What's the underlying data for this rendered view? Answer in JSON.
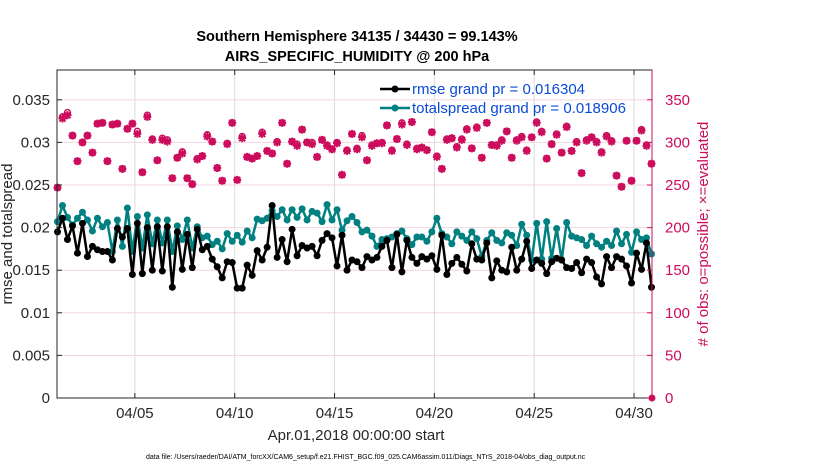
{
  "chart_data": {
    "type": "line",
    "title": "Southern Hemisphere 34135 / 34430 = 99.143%",
    "subtitle": "AIRS_SPECIFIC_HUMIDITY @ 200 hPa",
    "xlabel": "Apr.01,2018 00:00:00 start",
    "ylabel": "rmse and totalspread",
    "y2label": "# of obs: o=possible; ×=evaluated",
    "footnote": "data file: /Users/raeder/DAI/ATM_forcXX/CAM6_setup/f.e21.FHIST_BGC.f09_025.CAM6assim.011/Diags_NTrS_2018-04/obs_diag_output.nc",
    "xlim_days": [
      1.1,
      30.9
    ],
    "ylim": [
      0,
      0.0385
    ],
    "y2lim": [
      0,
      385
    ],
    "x_ticks": [
      {
        "day": 5,
        "label": "04/05"
      },
      {
        "day": 10,
        "label": "04/10"
      },
      {
        "day": 15,
        "label": "04/15"
      },
      {
        "day": 20,
        "label": "04/20"
      },
      {
        "day": 25,
        "label": "04/25"
      },
      {
        "day": 30,
        "label": "04/30"
      }
    ],
    "y_ticks": [
      {
        "v": 0,
        "label": "0"
      },
      {
        "v": 0.005,
        "label": "0.005"
      },
      {
        "v": 0.01,
        "label": "0.01"
      },
      {
        "v": 0.015,
        "label": "0.015"
      },
      {
        "v": 0.02,
        "label": "0.02"
      },
      {
        "v": 0.025,
        "label": "0.025"
      },
      {
        "v": 0.03,
        "label": "0.03"
      },
      {
        "v": 0.035,
        "label": "0.035"
      }
    ],
    "y2_ticks": [
      {
        "v": 0,
        "label": "0"
      },
      {
        "v": 50,
        "label": "50"
      },
      {
        "v": 100,
        "label": "100"
      },
      {
        "v": 150,
        "label": "150"
      },
      {
        "v": 200,
        "label": "200"
      },
      {
        "v": 250,
        "label": "250"
      },
      {
        "v": 300,
        "label": "300"
      },
      {
        "v": 350,
        "label": "350"
      }
    ],
    "grid": true,
    "legend": {
      "position": "top-right",
      "entries": [
        {
          "label": "rmse grand pr = 0.016304",
          "color": "#000000"
        },
        {
          "label": "totalspread grand pr = 0.018906",
          "color": "#008080"
        }
      ]
    },
    "x_start_day": 1.125,
    "x_step_days": 0.25,
    "series": [
      {
        "name": "rmse",
        "color": "#000000",
        "values": [
          0.0195,
          0.0211,
          0.0186,
          0.0202,
          0.017,
          0.0205,
          0.0166,
          0.0178,
          0.0174,
          0.0172,
          0.0172,
          0.0162,
          0.0199,
          0.0189,
          0.0199,
          0.0145,
          0.0205,
          0.0146,
          0.02,
          0.015,
          0.0201,
          0.0149,
          0.0201,
          0.013,
          0.0195,
          0.0151,
          0.0192,
          0.0153,
          0.0198,
          0.0174,
          0.0178,
          0.0163,
          0.0154,
          0.0141,
          0.016,
          0.0159,
          0.0129,
          0.0129,
          0.0156,
          0.0144,
          0.0173,
          0.0162,
          0.0177,
          0.0226,
          0.0165,
          0.0186,
          0.016,
          0.0198,
          0.0167,
          0.0179,
          0.0176,
          0.0178,
          0.0167,
          0.0185,
          0.0193,
          0.0188,
          0.0155,
          0.0191,
          0.015,
          0.0162,
          0.016,
          0.0153,
          0.0166,
          0.0162,
          0.0165,
          0.0178,
          0.0185,
          0.0153,
          0.0192,
          0.0148,
          0.0185,
          0.0165,
          0.0158,
          0.0166,
          0.0163,
          0.0167,
          0.0151,
          0.0191,
          0.0145,
          0.0158,
          0.0165,
          0.0157,
          0.0149,
          0.0181,
          0.0163,
          0.0162,
          0.0182,
          0.0141,
          0.0161,
          0.015,
          0.0148,
          0.0177,
          0.015,
          0.0163,
          0.0184,
          0.0152,
          0.0162,
          0.0158,
          0.0146,
          0.016,
          0.0164,
          0.0162,
          0.0153,
          0.0152,
          0.0159,
          0.0147,
          0.0163,
          0.0159,
          0.0142,
          0.0134,
          0.0166,
          0.0153,
          0.0166,
          0.0163,
          0.0155,
          0.0135,
          0.017,
          0.0151,
          0.0182,
          0.013
        ]
      },
      {
        "name": "totalspread",
        "color": "#008080",
        "values": [
          0.0207,
          0.0226,
          0.0212,
          0.0203,
          0.0211,
          0.0218,
          0.0209,
          0.0196,
          0.0211,
          0.0201,
          0.0206,
          0.0172,
          0.0209,
          0.0178,
          0.0223,
          0.0172,
          0.0213,
          0.0176,
          0.0215,
          0.0181,
          0.0209,
          0.0182,
          0.0209,
          0.0172,
          0.0202,
          0.0186,
          0.0209,
          0.0176,
          0.0201,
          0.0188,
          0.019,
          0.018,
          0.0184,
          0.0175,
          0.0193,
          0.0184,
          0.0191,
          0.0183,
          0.0196,
          0.0188,
          0.021,
          0.0208,
          0.0211,
          0.022,
          0.0213,
          0.0221,
          0.0209,
          0.0221,
          0.0212,
          0.0222,
          0.0209,
          0.0219,
          0.0217,
          0.0207,
          0.0227,
          0.0209,
          0.0221,
          0.0197,
          0.0208,
          0.0213,
          0.0206,
          0.0195,
          0.0197,
          0.019,
          0.0178,
          0.0186,
          0.0187,
          0.0189,
          0.0193,
          0.0196,
          0.0187,
          0.018,
          0.0189,
          0.0189,
          0.0184,
          0.0195,
          0.0211,
          0.0193,
          0.0189,
          0.0181,
          0.0195,
          0.019,
          0.0185,
          0.0195,
          0.0187,
          0.0166,
          0.0185,
          0.0194,
          0.0185,
          0.0182,
          0.0194,
          0.0191,
          0.0179,
          0.0204,
          0.0191,
          0.0162,
          0.0205,
          0.0163,
          0.0207,
          0.0164,
          0.0199,
          0.0162,
          0.0206,
          0.019,
          0.0188,
          0.0186,
          0.0179,
          0.019,
          0.0181,
          0.0177,
          0.0184,
          0.0179,
          0.0196,
          0.0181,
          0.0192,
          0.0171,
          0.0195,
          0.0186,
          0.0188,
          0.0169
        ]
      },
      {
        "name": "# obs possible",
        "color": "#cc0c5c",
        "values": [
          247,
          330,
          335,
          308,
          278,
          300,
          308,
          288,
          322,
          323,
          278,
          321,
          322,
          269,
          316,
          322,
          313,
          265,
          332,
          304,
          279,
          305,
          303,
          258,
          282,
          289,
          258,
          251,
          281,
          284,
          309,
          301,
          270,
          255,
          299,
          323,
          256,
          307,
          283,
          281,
          284,
          312,
          290,
          287,
          301,
          323,
          275,
          301,
          298,
          315,
          300,
          300,
          283,
          303,
          297,
          292,
          300,
          262,
          291,
          310,
          293,
          308,
          279,
          297,
          299,
          300,
          320,
          291,
          304,
          323,
          298,
          324,
          293,
          294,
          291,
          312,
          284,
          269,
          304,
          305,
          295,
          304,
          316,
          293,
          318,
          282,
          323,
          297,
          297,
          303,
          313,
          282,
          303,
          307,
          291,
          306,
          324,
          313,
          281,
          298,
          310,
          288,
          319,
          290,
          301,
          264,
          303,
          306,
          301,
          289,
          308,
          302,
          261,
          248,
          302,
          255,
          302,
          315,
          297,
          275
        ]
      },
      {
        "name": "# obs evaluated",
        "color": "#cc0c5c",
        "values": [
          247,
          328,
          332,
          308,
          278,
          300,
          308,
          288,
          322,
          323,
          278,
          321,
          322,
          269,
          316,
          322,
          310,
          265,
          330,
          303,
          279,
          303,
          301,
          258,
          282,
          287,
          258,
          251,
          280,
          284,
          307,
          301,
          270,
          255,
          298,
          323,
          256,
          305,
          283,
          281,
          284,
          310,
          290,
          287,
          300,
          323,
          275,
          301,
          296,
          315,
          300,
          298,
          283,
          303,
          296,
          292,
          299,
          262,
          290,
          310,
          292,
          306,
          279,
          296,
          299,
          299,
          320,
          290,
          304,
          321,
          297,
          324,
          292,
          294,
          291,
          312,
          283,
          269,
          303,
          305,
          294,
          303,
          315,
          293,
          317,
          282,
          323,
          297,
          296,
          302,
          313,
          282,
          302,
          306,
          290,
          306,
          323,
          312,
          281,
          298,
          309,
          288,
          318,
          290,
          300,
          264,
          302,
          306,
          300,
          288,
          307,
          301,
          261,
          248,
          302,
          255,
          302,
          314,
          296,
          275
        ]
      }
    ],
    "extra_marker": {
      "day": 30.9,
      "value": 0,
      "color": "#cc0c5c"
    }
  }
}
